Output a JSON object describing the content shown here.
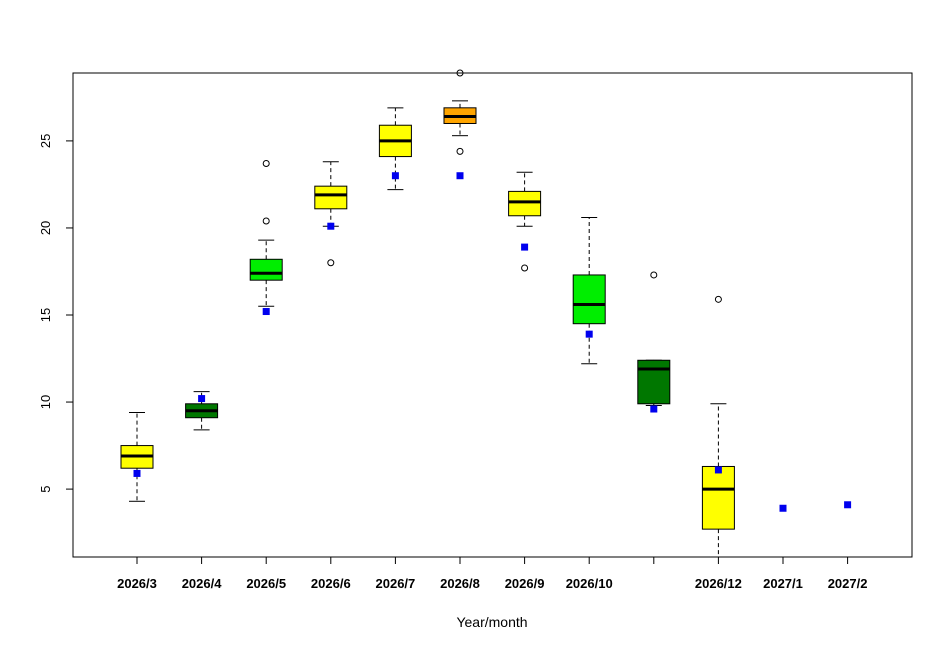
{
  "chart_data": {
    "type": "box",
    "title": "",
    "xlabel": "Year/month",
    "ylabel": "",
    "ylim": [
      1.1,
      28.9
    ],
    "yticks": [
      5,
      10,
      15,
      20,
      25
    ],
    "categories": [
      "2026/3",
      "2026/4",
      "2026/5",
      "2026/6",
      "2026/7",
      "2026/8",
      "2026/9",
      "2026/10",
      "",
      "2026/12",
      "2027/1",
      "2027/2"
    ],
    "colors": {
      "yellow": "#ffff00",
      "light_green": "#00ee00",
      "dark_green": "#007700",
      "orange": "#ffa500",
      "marker_blue": "#0000ee"
    },
    "boxes": [
      {
        "category": "2026/3",
        "color": "yellow",
        "lower_whisker": 4.3,
        "q1": 6.2,
        "median": 6.9,
        "q3": 7.5,
        "upper_whisker": 9.4,
        "outliers": [],
        "mean_marker": 5.9
      },
      {
        "category": "2026/4",
        "color": "dark_green",
        "lower_whisker": 8.4,
        "q1": 9.1,
        "median": 9.5,
        "q3": 9.9,
        "upper_whisker": 10.6,
        "outliers": [],
        "mean_marker": 10.2
      },
      {
        "category": "2026/5",
        "color": "light_green",
        "lower_whisker": 15.5,
        "q1": 17.0,
        "median": 17.4,
        "q3": 18.2,
        "upper_whisker": 19.3,
        "outliers": [
          20.4,
          23.7
        ],
        "mean_marker": 15.2
      },
      {
        "category": "2026/6",
        "color": "yellow",
        "lower_whisker": 20.1,
        "q1": 21.1,
        "median": 21.9,
        "q3": 22.4,
        "upper_whisker": 23.8,
        "outliers": [
          18.0
        ],
        "mean_marker": 20.1
      },
      {
        "category": "2026/7",
        "color": "yellow",
        "lower_whisker": 22.2,
        "q1": 24.1,
        "median": 25.0,
        "q3": 25.9,
        "upper_whisker": 26.9,
        "outliers": [],
        "mean_marker": 23.0
      },
      {
        "category": "2026/8",
        "color": "orange",
        "lower_whisker": 25.3,
        "q1": 26.0,
        "median": 26.4,
        "q3": 26.9,
        "upper_whisker": 27.3,
        "outliers": [
          24.4,
          28.9
        ],
        "mean_marker": 23.0
      },
      {
        "category": "2026/9",
        "color": "yellow",
        "lower_whisker": 20.1,
        "q1": 20.7,
        "median": 21.5,
        "q3": 22.1,
        "upper_whisker": 23.2,
        "outliers": [
          17.7
        ],
        "mean_marker": 18.9
      },
      {
        "category": "2026/10",
        "color": "light_green",
        "lower_whisker": 12.2,
        "q1": 14.5,
        "median": 15.6,
        "q3": 17.3,
        "upper_whisker": 20.6,
        "outliers": [],
        "mean_marker": 13.9
      },
      {
        "category": "",
        "color": "dark_green",
        "lower_whisker": 9.8,
        "q1": 9.9,
        "median": 11.9,
        "q3": 12.4,
        "upper_whisker": 12.4,
        "outliers": [
          17.3
        ],
        "mean_marker": 9.6
      },
      {
        "category": "2026/12",
        "color": "yellow",
        "lower_whisker": 1.1,
        "q1": 2.7,
        "median": 5.0,
        "q3": 6.3,
        "upper_whisker": 9.9,
        "outliers": [
          15.9
        ],
        "mean_marker": 6.1
      },
      {
        "category": "2027/1",
        "color": null,
        "mean_marker": 3.9
      },
      {
        "category": "2027/2",
        "color": null,
        "mean_marker": 4.1
      }
    ],
    "grid": false,
    "legend": "none"
  }
}
